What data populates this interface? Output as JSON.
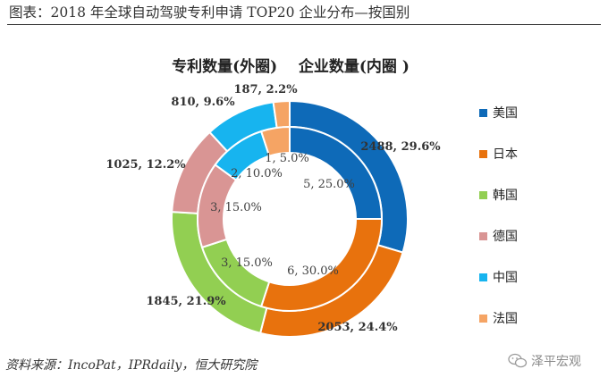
{
  "figure": {
    "title": "图表：2018 年全球自动驾驶专利申请 TOP20 企业分布—按国别",
    "source": "资料来源：IncoPat，IPRdaily，恒大研究院",
    "watermark": "泽平宏观"
  },
  "chart_data": {
    "type": "donut",
    "title": "专利数量(外圈)    企业数量(内圈 )",
    "categories": [
      "美国",
      "日本",
      "韩国",
      "德国",
      "中国",
      "法国"
    ],
    "colors": [
      "#0e6ab8",
      "#e8720d",
      "#92cf52",
      "#d99594",
      "#17b4ef",
      "#f5a464"
    ],
    "series": [
      {
        "name": "专利数量(外圈)",
        "values": [
          2488,
          2053,
          1845,
          1025,
          810,
          187
        ],
        "labels": [
          "2488, 29.6%",
          "2053, 24.4%",
          "1845, 21.9%",
          "1025, 12.2%",
          "810, 9.6%",
          "187, 2.2%"
        ]
      },
      {
        "name": "企业数量(内圈 )",
        "values": [
          5,
          6,
          3,
          3,
          2,
          1
        ],
        "labels": [
          "5, 25.0%",
          "6, 30.0%",
          "3, 15.0%",
          "3, 15.0%",
          "2, 10.0%",
          "1, 5.0%"
        ]
      }
    ],
    "legend": {
      "position": "right",
      "entries": [
        "美国",
        "日本",
        "韩国",
        "德国",
        "中国",
        "法国"
      ]
    }
  }
}
